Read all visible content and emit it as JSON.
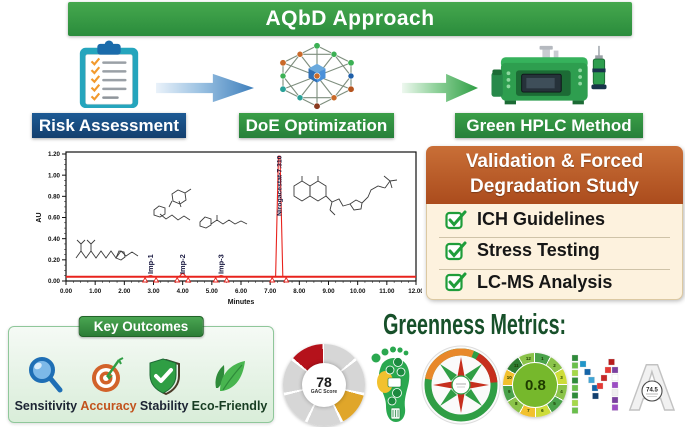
{
  "banner": {
    "title": "AQbD Approach"
  },
  "workflow": {
    "steps": [
      {
        "label": "Risk Assessment"
      },
      {
        "label": "DoE Optimization"
      },
      {
        "label": "Green HPLC Method"
      }
    ]
  },
  "chart_data": {
    "type": "line",
    "title": "",
    "xlabel": "Minutes",
    "ylabel": "AU",
    "xlim": [
      0,
      12
    ],
    "ylim": [
      0,
      1.2
    ],
    "x_ticks": [
      "0.00",
      "1.00",
      "2.00",
      "3.00",
      "4.00",
      "5.00",
      "6.00",
      "7.00",
      "8.00",
      "9.00",
      "10.00",
      "11.00",
      "12.00"
    ],
    "y_ticks": [
      "0.00",
      "0.20",
      "0.40",
      "0.60",
      "0.80",
      "1.00",
      "1.20"
    ],
    "line_color": "#e8231d",
    "peaks": [
      {
        "label": "Imp-1",
        "rt": 2.9,
        "height": 0.05
      },
      {
        "label": "Imp-2",
        "rt": 4.0,
        "height": 0.07
      },
      {
        "label": "Imp-3",
        "rt": 5.32,
        "height": 0.05
      },
      {
        "label": "Nirogacestat-7.310",
        "rt": 7.31,
        "height": 1.18
      }
    ]
  },
  "validation": {
    "title_lines": [
      "Validation & Forced",
      "Degradation Study"
    ],
    "items": [
      {
        "label": "ICH Guidelines"
      },
      {
        "label": "Stress Testing"
      },
      {
        "label": "LC-MS Analysis"
      }
    ]
  },
  "key_outcomes": {
    "title": "Key Outcomes",
    "items": [
      {
        "label": "Sensitivity"
      },
      {
        "label": "Accuracy"
      },
      {
        "label": "Stability"
      },
      {
        "label": "Eco-Friendly"
      }
    ]
  },
  "greenness": {
    "title": "Greenness Metrics:",
    "gac_wheel": {
      "value": "78",
      "caption": "GAC Score"
    },
    "agree": {
      "score": "0.8",
      "rim_labels": [
        "1",
        "2",
        "3",
        "4",
        "5",
        "6",
        "7",
        "8",
        "9",
        "10",
        "11",
        "12"
      ]
    },
    "amgs_badge": "74.5"
  },
  "colors": {
    "banner_green": "#2f9e44",
    "risk_blue": "#17497e",
    "label_green": "#2e8b3a",
    "validation_header": "#bf5b28",
    "validation_bg": "#fdf2de",
    "check_green": "#1f9d3a",
    "baseline_red": "#e8231d"
  }
}
